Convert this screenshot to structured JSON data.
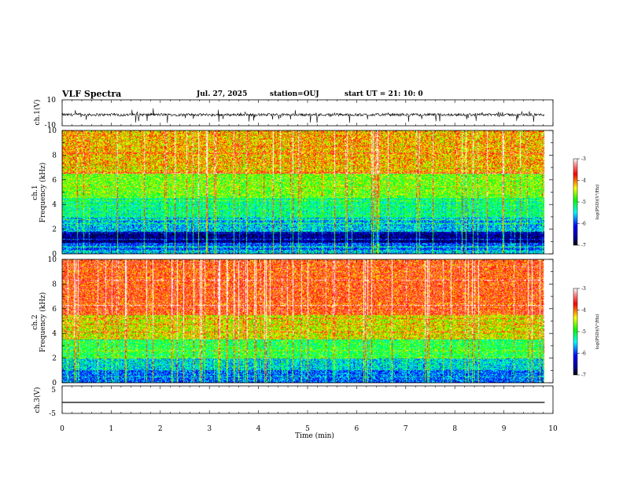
{
  "header": {
    "title": "VLF Spectra",
    "date": "Jul. 27, 2025",
    "station": "station=OUJ",
    "start": "start UT =  21: 10: 0"
  },
  "panels": {
    "ch1_wave": {
      "ylabel": "ch.1(V)",
      "ticks": [
        "10",
        "-10"
      ]
    },
    "ch1_spec": {
      "ylabel_1": "ch.1",
      "ylabel_2": "Frequency (kHz)"
    },
    "ch2_spec": {
      "ylabel_1": "ch.2",
      "ylabel_2": "Frequency (kHz)"
    },
    "ch3_wave": {
      "ylabel": "ch.3(V)",
      "ticks": [
        "5",
        "-5"
      ]
    }
  },
  "colorbar": {
    "label": "log(PSD)(V²/Hz)",
    "ticks": [
      "-3",
      "-4",
      "-5",
      "-6",
      "-7"
    ]
  },
  "xaxis": {
    "label": "Time (min)",
    "ticks": [
      "0",
      "1",
      "2",
      "3",
      "4",
      "5",
      "6",
      "7",
      "8",
      "9",
      "10"
    ]
  },
  "colors": {
    "frame": "#000000",
    "trace": "#000000"
  },
  "chart_data": [
    {
      "type": "line",
      "ylabel": "ch.1(V)",
      "xlim": [
        0,
        10
      ],
      "ylim": [
        -10,
        10
      ],
      "x_end": 9.83,
      "series": [
        {
          "baseline": -1.5,
          "noise_amplitude": 2,
          "spike_amplitude": 6
        }
      ]
    },
    {
      "type": "heatmap",
      "ylabel": "Frequency (kHz)",
      "xlabel": "Time (min)",
      "xlim": [
        0,
        10
      ],
      "ylim": [
        0,
        10
      ],
      "x_end": 9.83,
      "color_scale": "log(PSD)(V²/Hz)",
      "clim": [
        -7,
        -3
      ],
      "bands_log_psd": [
        {
          "freq_khz": [
            0,
            0.3
          ],
          "log_psd": -5.7
        },
        {
          "freq_khz": [
            0.3,
            0.9
          ],
          "log_psd": -6.0
        },
        {
          "freq_khz": [
            0.9,
            1.8
          ],
          "log_psd": -6.6
        },
        {
          "freq_khz": [
            1.8,
            3.0
          ],
          "log_psd": -5.6
        },
        {
          "freq_khz": [
            3.0,
            4.5
          ],
          "log_psd": -5.2
        },
        {
          "freq_khz": [
            4.5,
            6.5
          ],
          "log_psd": -4.7
        },
        {
          "freq_khz": [
            6.5,
            10
          ],
          "log_psd": -4.2
        }
      ]
    },
    {
      "type": "heatmap",
      "ylabel": "Frequency (kHz)",
      "xlabel": "Time (min)",
      "xlim": [
        0,
        10
      ],
      "ylim": [
        0,
        10
      ],
      "x_end": 9.83,
      "color_scale": "log(PSD)(V²/Hz)",
      "clim": [
        -7,
        -3
      ],
      "bands_log_psd": [
        {
          "freq_khz": [
            0,
            1.0
          ],
          "log_psd": -5.9
        },
        {
          "freq_khz": [
            1.0,
            2.0
          ],
          "log_psd": -5.5
        },
        {
          "freq_khz": [
            2.0,
            3.5
          ],
          "log_psd": -5.0
        },
        {
          "freq_khz": [
            3.5,
            5.5
          ],
          "log_psd": -4.4
        },
        {
          "freq_khz": [
            5.5,
            10
          ],
          "log_psd": -3.8
        }
      ]
    },
    {
      "type": "line",
      "ylabel": "ch.3(V)",
      "xlim": [
        0,
        10
      ],
      "ylim": [
        -5,
        5
      ],
      "x_end": 9.83,
      "series": [
        {
          "baseline": -1.0,
          "noise_amplitude": 0,
          "spike_amplitude": 0
        }
      ]
    }
  ]
}
